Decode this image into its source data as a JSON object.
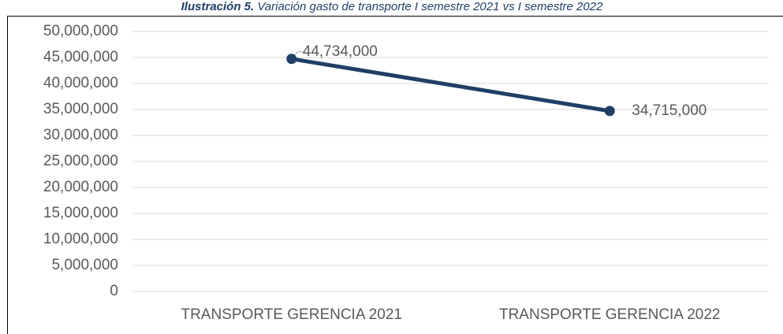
{
  "chart_data": {
    "type": "line",
    "figure_label": "Ilustración 5.",
    "title": "Variación gasto de transporte I semestre 2021 vs I semestre 2022",
    "categories": [
      "TRANSPORTE GERENCIA 2021",
      "TRANSPORTE GERENCIA 2022"
    ],
    "series": [
      {
        "name": null,
        "color": "#1f3f66",
        "values": [
          44734000,
          34715000
        ],
        "value_labels": [
          "44,734,000",
          "34,715,000"
        ]
      }
    ],
    "ylim": [
      0,
      50000000
    ],
    "yticks": [
      {
        "value": 0,
        "label": "0"
      },
      {
        "value": 5000000,
        "label": "5,000,000"
      },
      {
        "value": 10000000,
        "label": "10,000,000"
      },
      {
        "value": 15000000,
        "label": "15,000,000"
      },
      {
        "value": 20000000,
        "label": "20,000,000"
      },
      {
        "value": 25000000,
        "label": "25,000,000"
      },
      {
        "value": 30000000,
        "label": "30,000,000"
      },
      {
        "value": 35000000,
        "label": "35,000,000"
      },
      {
        "value": 40000000,
        "label": "40,000,000"
      },
      {
        "value": 45000000,
        "label": "45,000,000"
      },
      {
        "value": 50000000,
        "label": "50,000,000"
      }
    ],
    "grid": true
  }
}
